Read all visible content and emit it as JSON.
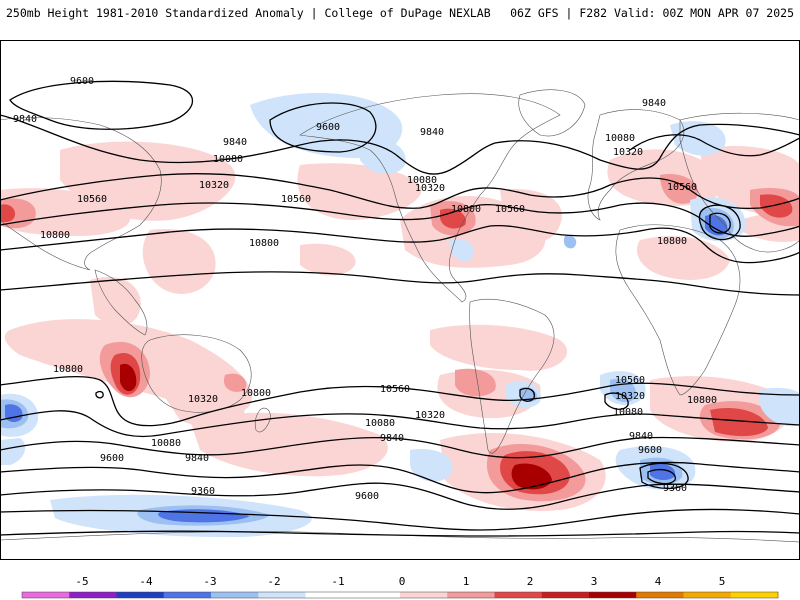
{
  "header": {
    "title_left": "250mb Height 1981-2010 Standardized Anomaly | College of DuPage NEXLAB",
    "title_right": "06Z GFS | F282 Valid: 00Z MON APR 07 2025"
  },
  "colors": {
    "anom_-4": "#1f3fbf",
    "anom_-3": "#4f74e6",
    "anom_-2": "#9dc0f2",
    "anom_-1": "#cfe3fb",
    "anom_1": "#fbd4d4",
    "anom_2": "#f39a9a",
    "anom_3": "#e04848",
    "anom_4": "#a80000",
    "contour": "#000000",
    "coast": "#555555"
  },
  "contour_labels": [
    "9600",
    "9840",
    "9600",
    "9840",
    "9840",
    "10080",
    "10320",
    "10560",
    "10800",
    "10560",
    "10080",
    "10320",
    "10800",
    "10560",
    "10080",
    "10320",
    "10800",
    "9840",
    "10560",
    "10800",
    "10800",
    "10320",
    "10560",
    "10800",
    "10320",
    "10080",
    "9840",
    "10080",
    "9600",
    "9840",
    "9600",
    "9360",
    "10560",
    "10320",
    "10080",
    "9840",
    "9600",
    "9360",
    "10800"
  ],
  "colorbar": {
    "ticks": [
      "-5",
      "-4",
      "-3",
      "-2",
      "-1",
      "0",
      "1",
      "2",
      "3",
      "4",
      "5"
    ],
    "bins": [
      {
        "color": "#e86adf"
      },
      {
        "color": "#8e1fc4"
      },
      {
        "color": "#1f3fbf"
      },
      {
        "color": "#4f74e6"
      },
      {
        "color": "#9dc0f2"
      },
      {
        "color": "#cfe3fb"
      },
      {
        "color": "#ffffff"
      },
      {
        "color": "#ffffff"
      },
      {
        "color": "#fbd4d4"
      },
      {
        "color": "#f39a9a"
      },
      {
        "color": "#e04848"
      },
      {
        "color": "#c81e1e"
      },
      {
        "color": "#a80000"
      },
      {
        "color": "#e07a00"
      },
      {
        "color": "#f5a800"
      },
      {
        "color": "#ffd000"
      }
    ]
  }
}
